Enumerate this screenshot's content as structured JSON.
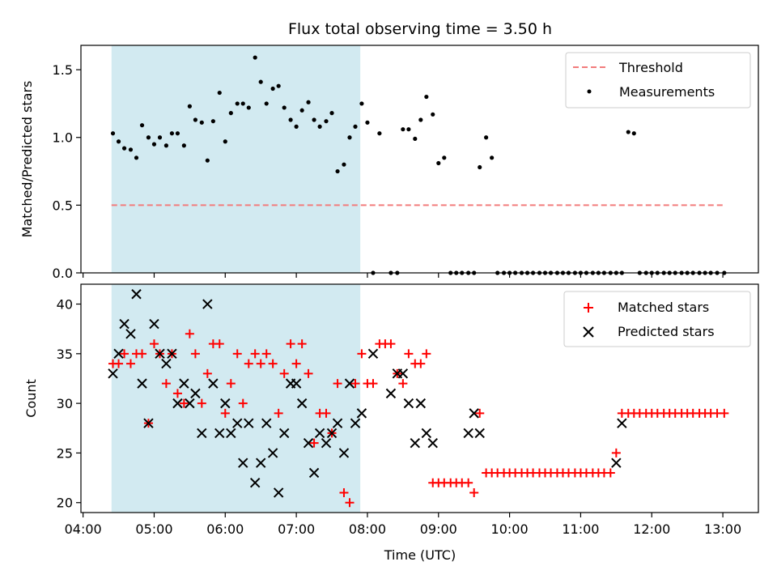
{
  "chart_data": {
    "type": "scatter",
    "title": "Flux total observing time = 3.50 h",
    "xlabel": "Time (UTC)",
    "x_ticks": [
      "04:00",
      "05:00",
      "06:00",
      "07:00",
      "08:00",
      "09:00",
      "10:00",
      "11:00",
      "12:00",
      "13:00"
    ],
    "x_range_hours": [
      3.97,
      13.5
    ],
    "shaded_interval_hours": [
      4.4,
      7.9
    ],
    "colors": {
      "threshold": "#f27c7c",
      "measurements": "#000000",
      "matched": "#ff0000",
      "predicted": "#000000",
      "shade": "#add8e6"
    },
    "panels": [
      {
        "ylabel": "Matched/Predicted stars",
        "ylim": [
          0,
          1.68
        ],
        "y_ticks": [
          "0.0",
          "0.5",
          "1.0",
          "1.5"
        ],
        "legend_position": "upper right",
        "threshold": {
          "name": "Threshold",
          "y": 0.5,
          "x_start": 4.4,
          "x_end": 13.0
        },
        "measurements": {
          "name": "Measurements",
          "x": [
            4.42,
            4.5,
            4.58,
            4.67,
            4.75,
            4.83,
            4.92,
            5.0,
            5.08,
            5.17,
            5.25,
            5.33,
            5.42,
            5.5,
            5.58,
            5.67,
            5.75,
            5.83,
            5.92,
            6.0,
            6.08,
            6.17,
            6.25,
            6.33,
            6.42,
            6.5,
            6.58,
            6.67,
            6.75,
            6.83,
            6.92,
            7.0,
            7.08,
            7.17,
            7.25,
            7.33,
            7.42,
            7.5,
            7.58,
            7.67,
            7.75,
            7.83,
            7.92,
            8.0,
            8.08,
            8.17,
            8.33,
            8.42,
            8.5,
            8.58,
            8.67,
            8.75,
            8.83,
            8.92,
            9.0,
            9.08,
            9.17,
            9.25,
            9.33,
            9.42,
            9.5,
            9.58,
            9.67,
            9.75,
            9.83,
            9.92,
            10.0,
            10.08,
            10.17,
            10.25,
            10.33,
            10.42,
            10.5,
            10.58,
            10.67,
            10.75,
            10.83,
            10.92,
            11.0,
            11.08,
            11.17,
            11.25,
            11.33,
            11.42,
            11.5,
            11.58,
            11.67,
            11.75,
            11.83,
            11.92,
            12.0,
            12.08,
            12.17,
            12.25,
            12.33,
            12.42,
            12.5,
            12.58,
            12.67,
            12.75,
            12.83,
            12.92,
            13.02
          ],
          "y": [
            1.03,
            0.97,
            0.92,
            0.91,
            0.85,
            1.09,
            1.0,
            0.95,
            1.0,
            0.94,
            1.03,
            1.03,
            0.94,
            1.23,
            1.13,
            1.11,
            0.83,
            1.12,
            1.33,
            0.97,
            1.18,
            1.25,
            1.25,
            1.22,
            1.59,
            1.41,
            1.25,
            1.36,
            1.38,
            1.22,
            1.13,
            1.08,
            1.2,
            1.26,
            1.13,
            1.08,
            1.12,
            1.18,
            0.75,
            0.8,
            1.0,
            1.08,
            1.25,
            1.11,
            0,
            1.03,
            0,
            0,
            1.06,
            1.06,
            0.99,
            1.13,
            1.3,
            1.17,
            0.81,
            0.85,
            0,
            0,
            0,
            0,
            0,
            0.78,
            1.0,
            0.85,
            0,
            0,
            0,
            0,
            0,
            0,
            0,
            0,
            0,
            0,
            0,
            0,
            0,
            0,
            0,
            0,
            0,
            0,
            0,
            0,
            0,
            0,
            1.04,
            1.03,
            0,
            0,
            0,
            0,
            0,
            0,
            0,
            0,
            0,
            0,
            0,
            0,
            0,
            0,
            0
          ]
        }
      },
      {
        "ylabel": "Count",
        "ylim": [
          19,
          42
        ],
        "y_ticks": [
          "20",
          "25",
          "30",
          "35",
          "40"
        ],
        "legend_position": "upper right",
        "series": [
          {
            "name": "Matched stars",
            "marker": "+",
            "x": [
              4.42,
              4.5,
              4.58,
              4.67,
              4.75,
              4.83,
              4.92,
              5.0,
              5.08,
              5.17,
              5.25,
              5.33,
              5.42,
              5.5,
              5.58,
              5.67,
              5.75,
              5.83,
              5.92,
              6.0,
              6.08,
              6.17,
              6.25,
              6.33,
              6.42,
              6.5,
              6.58,
              6.67,
              6.75,
              6.83,
              6.92,
              7.0,
              7.08,
              7.17,
              7.25,
              7.33,
              7.42,
              7.5,
              7.58,
              7.67,
              7.75,
              7.83,
              7.92,
              8.0,
              8.08,
              8.17,
              8.25,
              8.33,
              8.42,
              8.5,
              8.58,
              8.67,
              8.75,
              8.83,
              8.92,
              9.0,
              9.08,
              9.17,
              9.25,
              9.33,
              9.42,
              9.5,
              9.58,
              9.67,
              9.75,
              9.83,
              9.92,
              10.0,
              10.08,
              10.17,
              10.25,
              10.33,
              10.42,
              10.5,
              10.58,
              10.67,
              10.75,
              10.83,
              10.92,
              11.0,
              11.08,
              11.17,
              11.25,
              11.33,
              11.42,
              11.5,
              11.58,
              11.67,
              11.75,
              11.83,
              11.92,
              12.0,
              12.08,
              12.17,
              12.25,
              12.33,
              12.42,
              12.5,
              12.58,
              12.67,
              12.75,
              12.83,
              12.92,
              13.02
            ],
            "y": [
              34,
              34,
              35,
              34,
              35,
              35,
              28,
              36,
              35,
              32,
              35,
              31,
              30,
              37,
              35,
              30,
              33,
              36,
              36,
              29,
              32,
              35,
              30,
              34,
              35,
              34,
              35,
              34,
              29,
              33,
              36,
              34,
              36,
              33,
              26,
              29,
              29,
              27,
              32,
              21,
              20,
              32,
              35,
              32,
              32,
              36,
              36,
              36,
              33,
              32,
              35,
              34,
              34,
              35,
              22,
              22,
              22,
              22,
              22,
              22,
              22,
              21,
              29,
              23,
              23,
              23,
              23,
              23,
              23,
              23,
              23,
              23,
              23,
              23,
              23,
              23,
              23,
              23,
              23,
              23,
              23,
              23,
              23,
              23,
              23,
              25,
              29,
              29,
              29,
              29,
              29,
              29,
              29,
              29,
              29,
              29,
              29,
              29,
              29,
              29,
              29,
              29,
              29,
              29
            ]
          },
          {
            "name": "Predicted stars",
            "marker": "x",
            "x": [
              4.42,
              4.5,
              4.58,
              4.67,
              4.75,
              4.83,
              4.92,
              5.0,
              5.08,
              5.17,
              5.25,
              5.33,
              5.42,
              5.5,
              5.58,
              5.67,
              5.75,
              5.83,
              5.92,
              6.0,
              6.08,
              6.17,
              6.25,
              6.33,
              6.42,
              6.5,
              6.58,
              6.67,
              6.75,
              6.83,
              6.92,
              7.0,
              7.08,
              7.17,
              7.25,
              7.33,
              7.42,
              7.5,
              7.58,
              7.67,
              7.75,
              7.83,
              7.92,
              8.08,
              8.33,
              8.42,
              8.5,
              8.58,
              8.67,
              8.75,
              8.83,
              8.92,
              9.42,
              9.5,
              9.58,
              11.5,
              11.58
            ],
            "y": [
              33,
              35,
              38,
              37,
              41,
              32,
              28,
              38,
              35,
              34,
              35,
              30,
              32,
              30,
              31,
              27,
              40,
              32,
              27,
              30,
              27,
              28,
              24,
              28,
              22,
              24,
              28,
              25,
              21,
              27,
              32,
              32,
              30,
              26,
              23,
              27,
              26,
              27,
              28,
              25,
              32,
              28,
              29,
              35,
              31,
              33,
              33,
              30,
              26,
              30,
              27,
              26,
              27,
              29,
              27,
              24,
              28
            ]
          }
        ]
      }
    ]
  }
}
